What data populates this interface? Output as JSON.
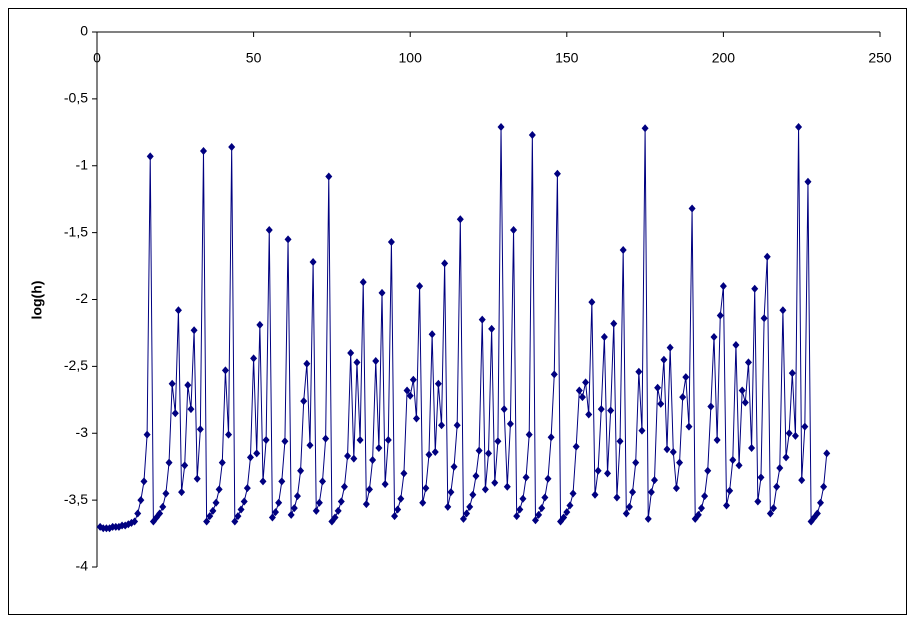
{
  "chart_data": {
    "type": "line",
    "y_label": "log(h)",
    "x": [
      1,
      2,
      3,
      4,
      5,
      6,
      7,
      8,
      9,
      10,
      11,
      12,
      13,
      14,
      15,
      16,
      17,
      18,
      19,
      20,
      21,
      22,
      23,
      24,
      25,
      26,
      27,
      28,
      29,
      30,
      31,
      32,
      33,
      34,
      35,
      36,
      37,
      38,
      39,
      40,
      41,
      42,
      43,
      44,
      45,
      46,
      47,
      48,
      49,
      50,
      51,
      52,
      53,
      54,
      55,
      56,
      57,
      58,
      59,
      60,
      61,
      62,
      63,
      64,
      65,
      66,
      67,
      68,
      69,
      70,
      71,
      72,
      73,
      74,
      75,
      76,
      77,
      78,
      79,
      80,
      81,
      82,
      83,
      84,
      85,
      86,
      87,
      88,
      89,
      90,
      91,
      92,
      93,
      94,
      95,
      96,
      97,
      98,
      99,
      100,
      101,
      102,
      103,
      104,
      105,
      106,
      107,
      108,
      109,
      110,
      111,
      112,
      113,
      114,
      115,
      116,
      117,
      118,
      119,
      120,
      121,
      122,
      123,
      124,
      125,
      126,
      127,
      128,
      129,
      130,
      131,
      132,
      133,
      134,
      135,
      136,
      137,
      138,
      139,
      140,
      141,
      142,
      143,
      144,
      145,
      146,
      147,
      148,
      149,
      150,
      151,
      152,
      153,
      154,
      155,
      156,
      157,
      158,
      159,
      160,
      161,
      162,
      163,
      164,
      165,
      166,
      167,
      168,
      169,
      170,
      171,
      172,
      173,
      174,
      175,
      176,
      177,
      178,
      179,
      180,
      181,
      182,
      183,
      184,
      185,
      186,
      187,
      188,
      189,
      190,
      191,
      192,
      193,
      194,
      195,
      196,
      197,
      198,
      199,
      200,
      201,
      202,
      203,
      204,
      205,
      206,
      207,
      208,
      209,
      210,
      211,
      212,
      213,
      214,
      215,
      216,
      217,
      218,
      219,
      220,
      221,
      222,
      223,
      224,
      225,
      226,
      227,
      228,
      229,
      230,
      231,
      232,
      233
    ],
    "series": [
      {
        "color": "#000080",
        "values": [
          -3.7,
          -3.71,
          -3.71,
          -3.71,
          -3.7,
          -3.7,
          -3.7,
          -3.69,
          -3.69,
          -3.68,
          -3.67,
          -3.66,
          -3.6,
          -3.5,
          -3.36,
          -3.01,
          -0.93,
          -3.66,
          -3.63,
          -3.6,
          -3.55,
          -3.45,
          -3.22,
          -2.63,
          -2.85,
          -2.08,
          -3.44,
          -3.24,
          -2.64,
          -2.82,
          -2.23,
          -3.34,
          -2.97,
          -0.89,
          -3.66,
          -3.62,
          -3.58,
          -3.52,
          -3.42,
          -3.22,
          -2.53,
          -3.01,
          -0.86,
          -3.66,
          -3.62,
          -3.57,
          -3.51,
          -3.41,
          -3.18,
          -2.44,
          -3.15,
          -2.19,
          -3.36,
          -3.05,
          -1.48,
          -3.63,
          -3.59,
          -3.52,
          -3.36,
          -3.06,
          -1.55,
          -3.61,
          -3.56,
          -3.47,
          -3.28,
          -2.76,
          -2.48,
          -3.09,
          -1.72,
          -3.58,
          -3.52,
          -3.36,
          -3.04,
          -1.08,
          -3.66,
          -3.63,
          -3.58,
          -3.51,
          -3.4,
          -3.17,
          -2.4,
          -3.19,
          -2.47,
          -3.05,
          -1.87,
          -3.53,
          -3.42,
          -3.2,
          -2.46,
          -3.11,
          -1.95,
          -3.38,
          -3.05,
          -1.57,
          -3.62,
          -3.57,
          -3.49,
          -3.3,
          -2.68,
          -2.72,
          -2.6,
          -2.89,
          -1.9,
          -3.52,
          -3.41,
          -3.16,
          -2.26,
          -3.14,
          -2.63,
          -2.94,
          -1.73,
          -3.55,
          -3.44,
          -3.25,
          -2.94,
          -1.4,
          -3.64,
          -3.6,
          -3.55,
          -3.46,
          -3.32,
          -3.13,
          -2.15,
          -3.42,
          -3.15,
          -2.22,
          -3.37,
          -3.06,
          -0.71,
          -2.82,
          -3.4,
          -2.93,
          -1.48,
          -3.62,
          -3.57,
          -3.49,
          -3.33,
          -3.01,
          -0.77,
          -3.65,
          -3.61,
          -3.56,
          -3.48,
          -3.34,
          -3.03,
          -2.56,
          -1.06,
          -3.66,
          -3.63,
          -3.59,
          -3.54,
          -3.45,
          -3.1,
          -2.68,
          -2.73,
          -2.62,
          -2.86,
          -2.02,
          -3.46,
          -3.28,
          -2.82,
          -2.28,
          -3.3,
          -2.83,
          -2.18,
          -3.48,
          -3.06,
          -1.63,
          -3.6,
          -3.55,
          -3.44,
          -3.22,
          -2.54,
          -2.98,
          -0.72,
          -3.64,
          -3.44,
          -3.35,
          -2.66,
          -2.78,
          -2.45,
          -3.12,
          -2.36,
          -3.14,
          -3.41,
          -3.22,
          -2.73,
          -2.58,
          -2.95,
          -1.32,
          -3.64,
          -3.61,
          -3.56,
          -3.47,
          -3.28,
          -2.8,
          -2.28,
          -3.05,
          -2.12,
          -1.9,
          -3.54,
          -3.43,
          -3.2,
          -2.34,
          -3.24,
          -2.68,
          -2.77,
          -2.47,
          -3.11,
          -1.92,
          -3.51,
          -3.33,
          -2.14,
          -1.68,
          -3.6,
          -3.56,
          -3.4,
          -3.26,
          -2.08,
          -3.18,
          -3.0,
          -2.55,
          -3.02,
          -0.71,
          -3.35,
          -2.95,
          -1.12,
          -3.66,
          -3.63,
          -3.6,
          -3.52,
          -3.4,
          -3.15
        ]
      }
    ],
    "xlim": [
      0,
      250
    ],
    "xticks": [
      0,
      50,
      100,
      150,
      200,
      250
    ],
    "ylim": [
      -4,
      0
    ],
    "yticks": [
      0,
      {
        "value": -0.5,
        "label": "-0,5"
      },
      -1,
      {
        "value": -1.5,
        "label": "-1,5"
      },
      -2,
      {
        "value": -2.5,
        "label": "-2,5"
      },
      -3,
      {
        "value": -3.5,
        "label": "-3,5"
      },
      -4
    ]
  }
}
